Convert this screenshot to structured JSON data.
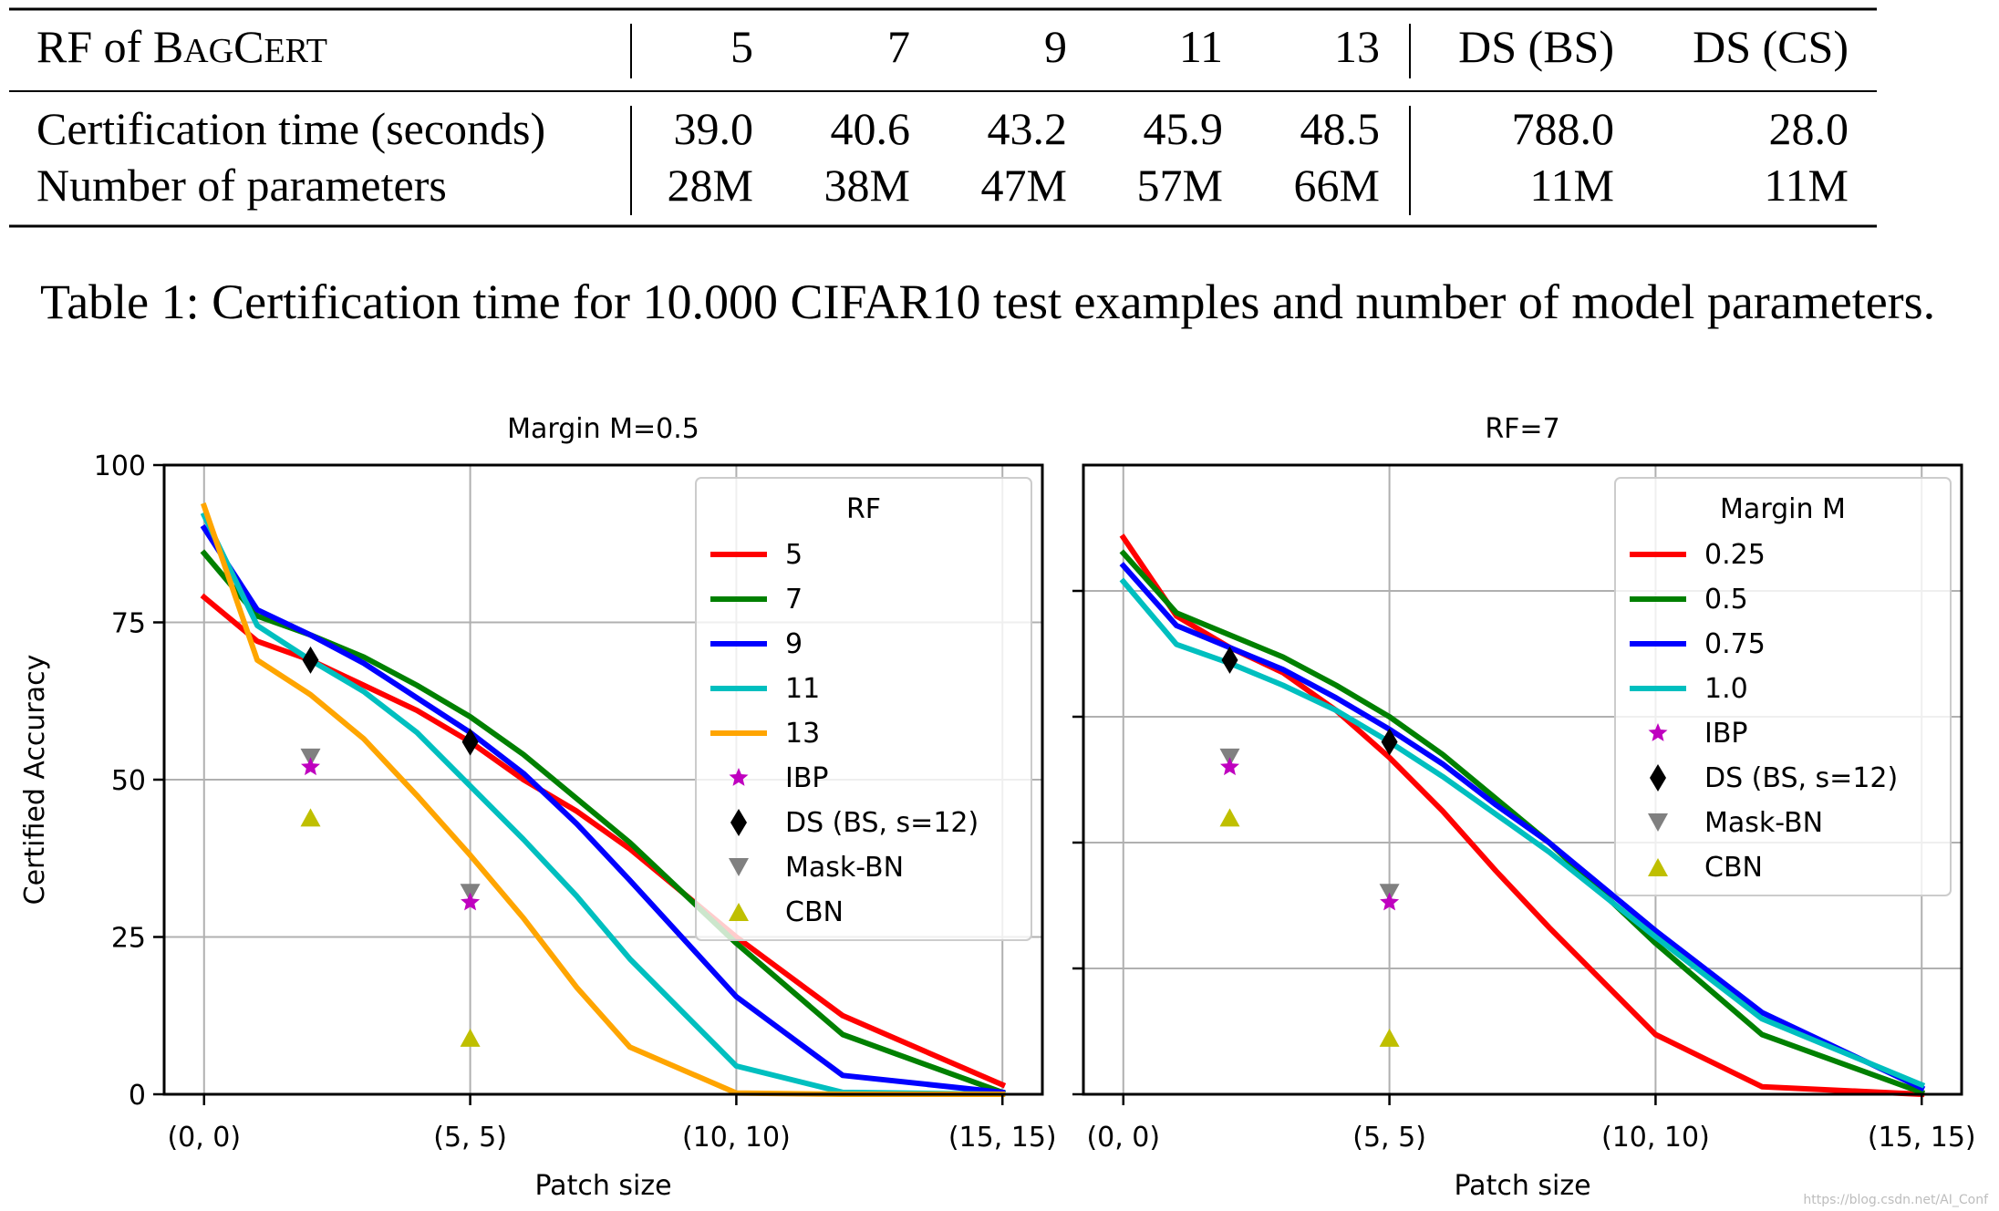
{
  "table": {
    "header_label": "RF of BagCert",
    "header_cols": [
      "5",
      "7",
      "9",
      "11",
      "13",
      "DS (BS)",
      "DS (CS)"
    ],
    "rows": [
      {
        "label": "Certification time (seconds)",
        "values": [
          "39.0",
          "40.6",
          "43.2",
          "45.9",
          "48.5",
          "788.0",
          "28.0"
        ]
      },
      {
        "label": "Number of parameters",
        "values": [
          "28M",
          "38M",
          "47M",
          "57M",
          "66M",
          "11M",
          "11M"
        ]
      }
    ],
    "caption": "Table 1: Certification time for 10.000 CIFAR10 test examples and number of model parameters."
  },
  "chart_data": [
    {
      "type": "line",
      "title": "Margin M=0.5",
      "xlabel": "Patch size",
      "ylabel": "Certified Accuracy",
      "x_ticks": [
        {
          "v": 0,
          "label": "(0, 0)"
        },
        {
          "v": 5,
          "label": "(5, 5)"
        },
        {
          "v": 10,
          "label": "(10, 10)"
        },
        {
          "v": 15,
          "label": "(15, 15)"
        }
      ],
      "y_ticks": [
        0,
        25,
        50,
        75,
        100
      ],
      "show_y_tick_labels": true,
      "xlim": [
        -0.75,
        15.75
      ],
      "ylim": [
        0,
        100
      ],
      "grid": true,
      "legend_title": "RF",
      "legend_position": "top-right",
      "series": [
        {
          "name": "5",
          "color": "#ff0000",
          "x": [
            0,
            1,
            2,
            3,
            4,
            5,
            6,
            7,
            8,
            10,
            12,
            15
          ],
          "y": [
            79,
            72,
            69,
            65,
            61,
            56,
            50,
            45,
            39,
            25,
            12.5,
            1.5
          ]
        },
        {
          "name": "7",
          "color": "#008000",
          "x": [
            0,
            1,
            2,
            3,
            4,
            5,
            6,
            7,
            8,
            10,
            12,
            15
          ],
          "y": [
            86,
            76,
            73,
            69.5,
            65,
            60,
            54,
            47,
            40,
            24,
            9.5,
            0.3
          ]
        },
        {
          "name": "9",
          "color": "#0000ff",
          "x": [
            0,
            1,
            2,
            3,
            4,
            5,
            6,
            7,
            8,
            10,
            12,
            15
          ],
          "y": [
            90,
            77,
            73,
            68.5,
            63,
            57.5,
            51,
            43,
            34,
            15.5,
            3,
            0.3
          ]
        },
        {
          "name": "11",
          "color": "#00bfbf",
          "x": [
            0,
            1,
            2,
            3,
            4,
            5,
            6,
            7,
            8,
            10,
            12,
            15
          ],
          "y": [
            92,
            74.5,
            69,
            64,
            57.5,
            49,
            40.5,
            31.5,
            21.5,
            4.5,
            0.3,
            0
          ]
        },
        {
          "name": "13",
          "color": "#ffa500",
          "x": [
            0,
            1,
            2,
            3,
            4,
            5,
            6,
            7,
            8,
            10,
            12,
            15
          ],
          "y": [
            93.5,
            69,
            63.5,
            56.5,
            47.5,
            38,
            28,
            17,
            7.5,
            0.2,
            0,
            0
          ]
        }
      ],
      "markers": [
        {
          "name": "IBP",
          "shape": "star",
          "color": "#bf00bf",
          "points": [
            {
              "x": 2,
              "y": 52
            },
            {
              "x": 5,
              "y": 30.5
            }
          ]
        },
        {
          "name": "DS (BS, s=12)",
          "shape": "diamond",
          "color": "#000000",
          "points": [
            {
              "x": 2,
              "y": 69
            },
            {
              "x": 5,
              "y": 56
            }
          ]
        },
        {
          "name": "Mask-BN",
          "shape": "triangle-down",
          "color": "#808080",
          "points": [
            {
              "x": 2,
              "y": 53.5
            },
            {
              "x": 5,
              "y": 32
            }
          ]
        },
        {
          "name": "CBN",
          "shape": "triangle-up",
          "color": "#bfbf00",
          "points": [
            {
              "x": 2,
              "y": 44
            },
            {
              "x": 5,
              "y": 9
            }
          ]
        }
      ]
    },
    {
      "type": "line",
      "title": "RF=7",
      "xlabel": "Patch size",
      "ylabel": "",
      "x_ticks": [
        {
          "v": 0,
          "label": "(0, 0)"
        },
        {
          "v": 5,
          "label": "(5, 5)"
        },
        {
          "v": 10,
          "label": "(10, 10)"
        },
        {
          "v": 15,
          "label": "(15, 15)"
        }
      ],
      "y_ticks": [
        0,
        20,
        40,
        60,
        80
      ],
      "show_y_tick_labels": false,
      "xlim": [
        -0.75,
        15.75
      ],
      "ylim": [
        0,
        100
      ],
      "grid": true,
      "legend_title": "Margin M",
      "legend_position": "top-right",
      "series": [
        {
          "name": "0.25",
          "color": "#ff0000",
          "x": [
            0,
            1,
            2,
            3,
            4,
            5,
            6,
            7,
            8,
            10,
            12,
            15
          ],
          "y": [
            88.5,
            76,
            71,
            67,
            61,
            53.5,
            45,
            35.5,
            26.5,
            9.5,
            1.2,
            0
          ]
        },
        {
          "name": "0.5",
          "color": "#008000",
          "x": [
            0,
            1,
            2,
            3,
            4,
            5,
            6,
            7,
            8,
            10,
            12,
            15
          ],
          "y": [
            86,
            76.5,
            73,
            69.5,
            65,
            60,
            54,
            47,
            40,
            24,
            9.5,
            0.3
          ]
        },
        {
          "name": "0.75",
          "color": "#0000ff",
          "x": [
            0,
            1,
            2,
            3,
            4,
            5,
            6,
            7,
            8,
            10,
            12,
            15
          ],
          "y": [
            84,
            74.5,
            71,
            67.5,
            63,
            58,
            52.5,
            46,
            40,
            26,
            13,
            1
          ]
        },
        {
          "name": "1.0",
          "color": "#00bfbf",
          "x": [
            0,
            1,
            2,
            3,
            4,
            5,
            6,
            7,
            8,
            10,
            12,
            15
          ],
          "y": [
            81.5,
            71.5,
            68.5,
            65,
            61,
            56,
            50.5,
            44.5,
            38.5,
            25,
            12,
            1.5
          ]
        }
      ],
      "markers": [
        {
          "name": "IBP",
          "shape": "star",
          "color": "#bf00bf",
          "points": [
            {
              "x": 2,
              "y": 52
            },
            {
              "x": 5,
              "y": 30.5
            }
          ]
        },
        {
          "name": "DS (BS, s=12)",
          "shape": "diamond",
          "color": "#000000",
          "points": [
            {
              "x": 2,
              "y": 69
            },
            {
              "x": 5,
              "y": 56
            }
          ]
        },
        {
          "name": "Mask-BN",
          "shape": "triangle-down",
          "color": "#808080",
          "points": [
            {
              "x": 2,
              "y": 53.5
            },
            {
              "x": 5,
              "y": 32
            }
          ]
        },
        {
          "name": "CBN",
          "shape": "triangle-up",
          "color": "#bfbf00",
          "points": [
            {
              "x": 2,
              "y": 44
            },
            {
              "x": 5,
              "y": 9
            }
          ]
        }
      ]
    }
  ],
  "watermark": "https://blog.csdn.net/AI_Conf"
}
